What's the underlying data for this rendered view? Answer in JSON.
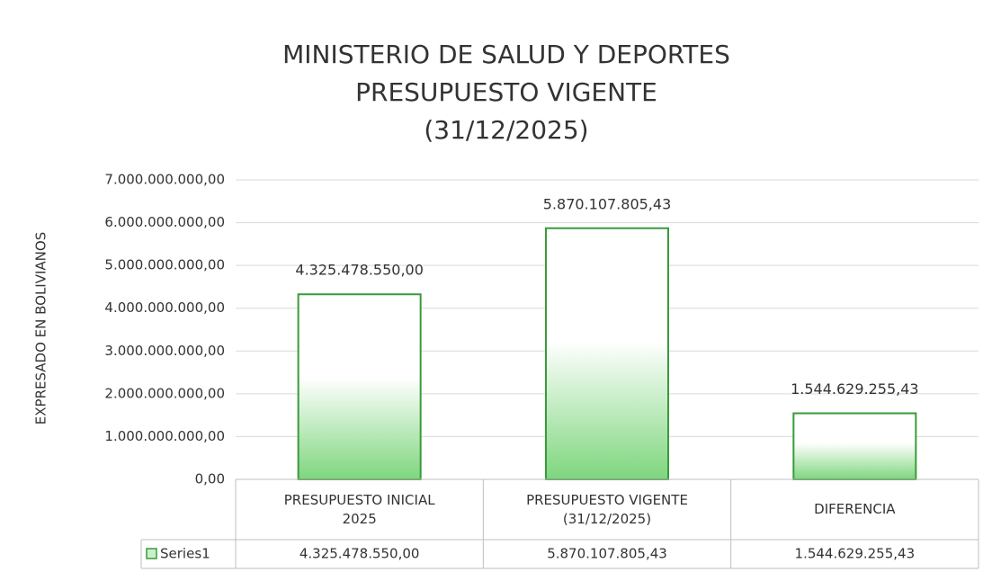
{
  "chart_data": {
    "type": "bar",
    "title": [
      "MINISTERIO DE SALUD Y DEPORTES",
      "PRESUPUESTO VIGENTE",
      "(31/12/2025)"
    ],
    "ylabel": "EXPRESADO EN BOLIVIANOS",
    "categories": [
      "PRESUPUESTO INICIAL 2025",
      "PRESUPUESTO VIGENTE (31/12/2025)",
      "DIFERENCIA"
    ],
    "series": [
      {
        "name": "Series1",
        "color": "#3a9a3a",
        "values": [
          4325478550,
          5870107805.43,
          1544629255.43
        ],
        "value_labels": [
          "4.325.478.550,00",
          "5.870.107.805,43",
          "1.544.629.255,43"
        ]
      }
    ],
    "ylim": [
      0,
      7000000000
    ],
    "yticks": [
      {
        "value": 0,
        "label": "0,00"
      },
      {
        "value": 1000000000,
        "label": "1.000.000.000,00"
      },
      {
        "value": 2000000000,
        "label": "2.000.000.000,00"
      },
      {
        "value": 3000000000,
        "label": "3.000.000.000,00"
      },
      {
        "value": 4000000000,
        "label": "4.000.000.000,00"
      },
      {
        "value": 5000000000,
        "label": "5.000.000.000,00"
      },
      {
        "value": 6000000000,
        "label": "6.000.000.000,00"
      },
      {
        "value": 7000000000,
        "label": "7.000.000.000,00"
      }
    ],
    "grid": true,
    "data_table": true
  }
}
